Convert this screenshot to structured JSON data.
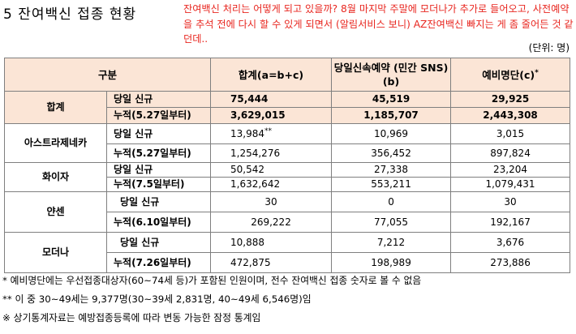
{
  "title": "5 잔여백신 접종 현황",
  "note": "잔여백신 처리는 어떻게 되고 있을까? 8월 마지막 주말에 모더나가 추가로 들어오고, 사전예약을 추석 전에 다시 할 수 있게 되면서 (알림서비스 보니) AZ잔여백신 빠지는 게 좀 줄어든 것 같던데..",
  "unit": "(단위: 명)",
  "table": {
    "headers": {
      "category": "구분",
      "total": "합계(a=b+c)",
      "sns": "당일신속예약 (민간 SNS) (b)",
      "reserve": "예비명단(c)",
      "reserve_sup": "*"
    },
    "groups": [
      {
        "name": "합계",
        "rows": [
          {
            "label": "당일 신규",
            "total": "75,444",
            "total_sup": "",
            "sns": "45,519",
            "reserve": "29,925"
          },
          {
            "label": "누적(5.27일부터)",
            "total": "3,629,015",
            "total_sup": "",
            "sns": "1,185,707",
            "reserve": "2,443,308"
          }
        ]
      },
      {
        "name": "아스트라제네카",
        "rows": [
          {
            "label": "당일 신규",
            "total": "13,984",
            "total_sup": "**",
            "sns": "10,969",
            "reserve": "3,015"
          },
          {
            "label": "누적(5.27일부터)",
            "total": "1,254,276",
            "total_sup": "",
            "sns": "356,452",
            "reserve": "897,824"
          }
        ]
      },
      {
        "name": "화이자",
        "rows": [
          {
            "label": "당일 신규",
            "total": "50,542",
            "total_sup": "",
            "sns": "27,338",
            "reserve": "23,204"
          },
          {
            "label": "누적(7.5일부터)",
            "total": "1,632,642",
            "total_sup": "",
            "sns": "553,211",
            "reserve": "1,079,431"
          }
        ]
      },
      {
        "name": "얀센",
        "rows": [
          {
            "label": "당일 신규",
            "total": "30",
            "total_sup": "",
            "sns": "0",
            "reserve": "30"
          },
          {
            "label": "누적(6.10일부터)",
            "total": "269,222",
            "total_sup": "",
            "sns": "77,055",
            "reserve": "192,167"
          }
        ]
      },
      {
        "name": "모더나",
        "rows": [
          {
            "label": "당일 신규",
            "total": "10,888",
            "total_sup": "",
            "sns": "7,212",
            "reserve": "3,676"
          },
          {
            "label": "누적(7.26일부터)",
            "total": "472,875",
            "total_sup": "",
            "sns": "198,989",
            "reserve": "273,886"
          }
        ]
      }
    ]
  },
  "footnotes": [
    "* 예비명단에는 우선접종대상자(60~74세 등)가 포함된 인원이며, 전수 잔여백신 접종 숫자로 볼 수 없음",
    "** 이 중 30~49세는 9,377명(30~39세 2,831명, 40~49세 6,546명)임",
    "※ 상기통계자료는 예방접종등록에 따라 변동 가능한 잠정 통계임"
  ]
}
